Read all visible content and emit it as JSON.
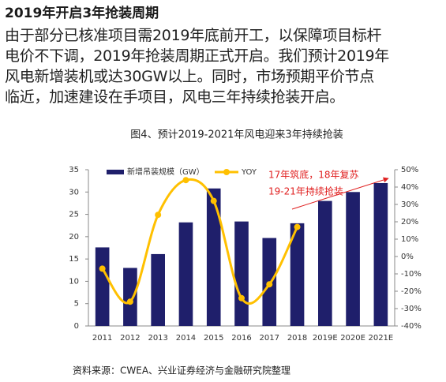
{
  "header": {
    "title": "2019年开启3年抢装周期"
  },
  "paragraph_lines": [
    "由于部分已核准项目需2019年底前开工，以保障项目标杆",
    "电价不下调，2019年抢装周期正式开启。我们预计2019年",
    "风电新增装机或达30GW以上。同时，市场预期平价节点",
    "临近，加速建设在手项目，风电三年持续抢装开启。"
  ],
  "chart_data": {
    "type": "bar_line",
    "title": "图4、预计2019-2021年风电迎来3年持续抢装",
    "categories": [
      "2011",
      "2012",
      "2013",
      "2014",
      "2015",
      "2016",
      "2017",
      "2018",
      "2019E",
      "2020E",
      "2021E"
    ],
    "series": [
      {
        "name": "新增吊装规模（GW）",
        "color": "#1f1f6b",
        "values": [
          17.6,
          13,
          16.1,
          23.2,
          30.8,
          23.4,
          19.7,
          23,
          28,
          30,
          32
        ]
      },
      {
        "name": "YOY",
        "color": "#ffc000",
        "axis": "y2",
        "values": [
          -7,
          -26,
          24,
          44,
          32,
          -24,
          -16,
          17,
          null,
          null,
          null
        ]
      }
    ],
    "ylim": [
      0,
      35
    ],
    "yticks": [
      0,
      5,
      10,
      15,
      20,
      25,
      30,
      35
    ],
    "y2lim": [
      -40,
      50
    ],
    "y2ticks": [
      {
        "value": -40,
        "label": "-40%"
      },
      {
        "value": -30,
        "label": "-30%"
      },
      {
        "value": -20,
        "label": "-20%"
      },
      {
        "value": -10,
        "label": "-10%"
      },
      {
        "value": 0,
        "label": "0%"
      },
      {
        "value": 10,
        "label": "10%"
      },
      {
        "value": 20,
        "label": "20%"
      },
      {
        "value": 30,
        "label": "30%"
      },
      {
        "value": 40,
        "label": "40%"
      },
      {
        "value": 50,
        "label": "50%"
      }
    ],
    "annotations": [
      "17年筑底，18年复苏",
      "19-21年持续抢装"
    ],
    "source": "资料来源：CWEA、兴业证券经济与金融研究院整理"
  }
}
